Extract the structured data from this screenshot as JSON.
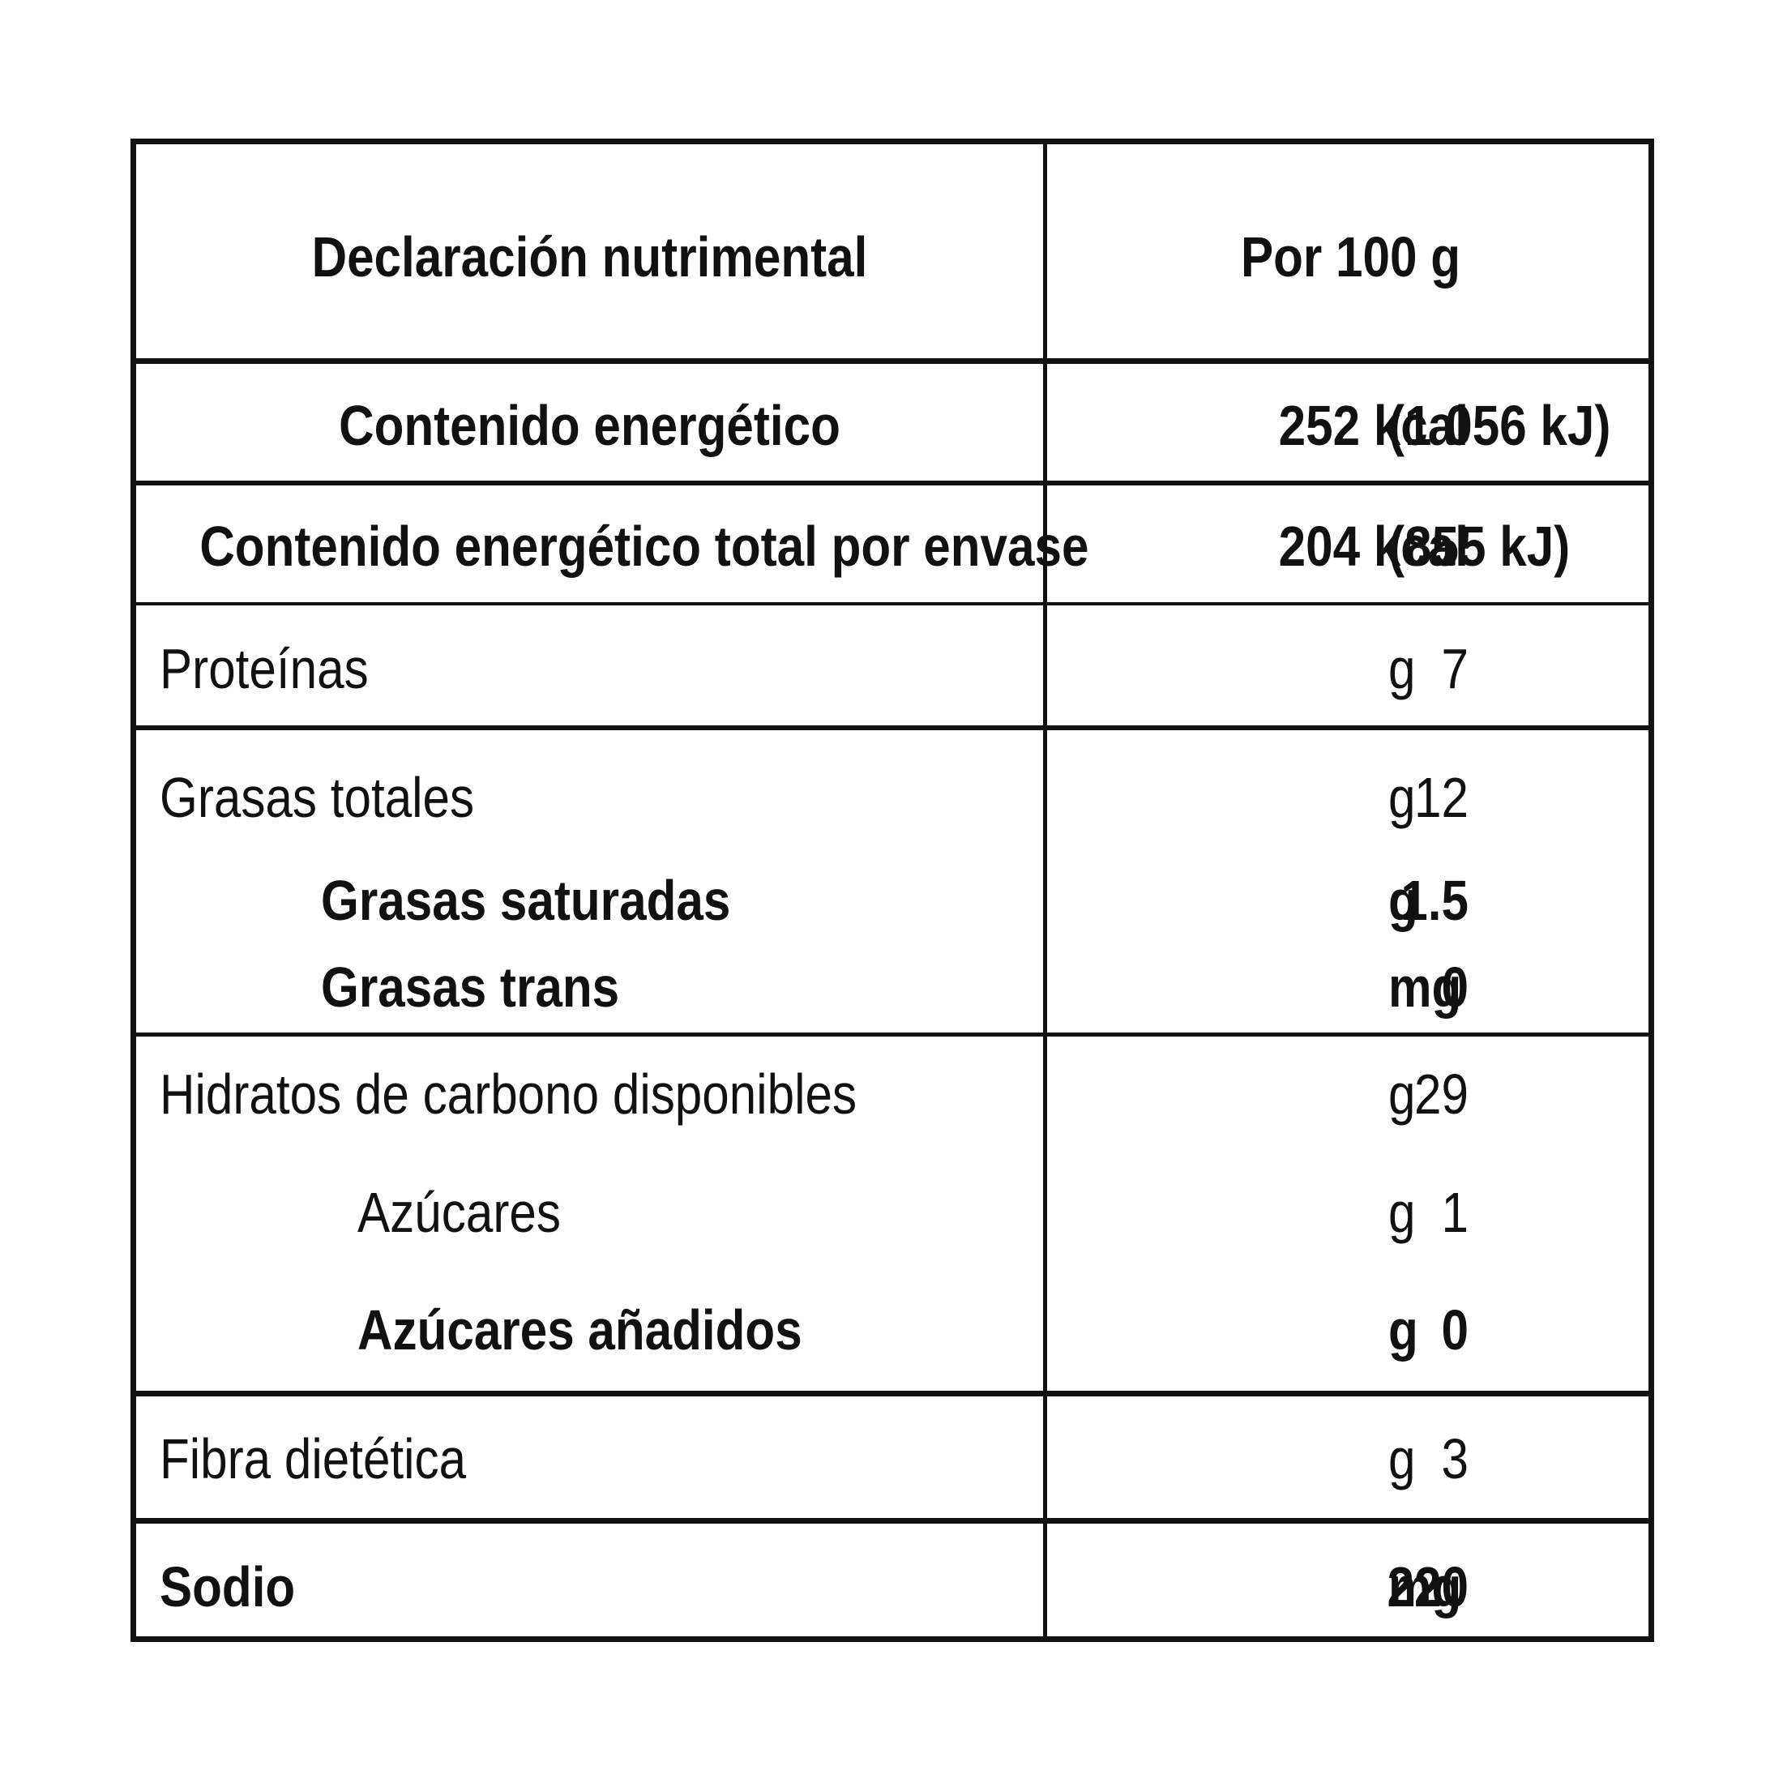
{
  "header": {
    "title": "Declaración nutrimental",
    "basis": "Por 100 g"
  },
  "rows": [
    {
      "label": "Contenido energético",
      "value": "252 kcal",
      "extra": "(1 056 kJ)"
    },
    {
      "label": "Contenido energético total por envase",
      "value": "204 kcal",
      "extra": "(855 kJ)"
    },
    {
      "label": "Proteínas",
      "value": "7",
      "unit": "g"
    },
    {
      "label": "Grasas totales",
      "value": "12",
      "unit": "g"
    },
    {
      "label": "Grasas saturadas",
      "value": "1.5",
      "unit": "g"
    },
    {
      "label": "Grasas trans",
      "value": "0",
      "unit": "mg"
    },
    {
      "label": "Hidratos de carbono disponibles",
      "value": "29",
      "unit": "g"
    },
    {
      "label": "Azúcares",
      "value": "1",
      "unit": "g"
    },
    {
      "label": "Azúcares añadidos",
      "value": "0",
      "unit": "g"
    },
    {
      "label": "Fibra dietética",
      "value": "3",
      "unit": "g"
    },
    {
      "label": "Sodio",
      "value": "220",
      "unit": "mg"
    }
  ]
}
